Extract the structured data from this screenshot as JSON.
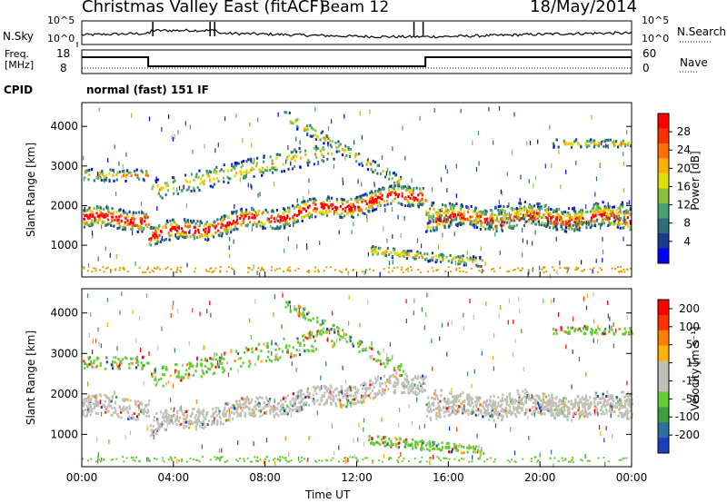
{
  "header": {
    "station": "Christmas Valley East (fitACF)",
    "beam": "Beam 12",
    "date": "18/May/2014"
  },
  "sky_panel": {
    "left_label": "N.Sky",
    "right_label": "N.Search",
    "left_ticks": [
      "10^5",
      "10^0"
    ],
    "right_ticks": [
      "10^5",
      "10^0"
    ]
  },
  "freq_panel": {
    "left_label_line1": "Freq.",
    "left_label_line2": "[MHz]",
    "right_label": "Nave",
    "left_ticks": [
      "18",
      "8"
    ],
    "right_ticks": [
      "60",
      "0"
    ]
  },
  "cpid": {
    "label": "CPID",
    "program": "normal (fast) 151 IF"
  },
  "colors": {
    "power_scale": [
      "#0000ff",
      "#1b3b8f",
      "#2e6e7a",
      "#4aa070",
      "#8cc040",
      "#e0e000",
      "#ffb000",
      "#ff7000",
      "#ff3000",
      "#ff0000"
    ],
    "velocity_scale": [
      "#1d3fbf",
      "#2e6fa0",
      "#3aa040",
      "#66cc33",
      "#c0c0b8",
      "#c0c0b8",
      "#ffb300",
      "#ff8000",
      "#ff3300",
      "#ff0000"
    ]
  },
  "chart_data": [
    {
      "type": "heatmap",
      "name": "power",
      "ylabel": "Slant Range [km]",
      "yticks": [
        "1000",
        "2000",
        "3000",
        "4000"
      ],
      "ylim": [
        200,
        4600
      ],
      "colorbar_label": "Power [dB]",
      "colorbar_ticks": [
        "28",
        "24",
        "20",
        "16",
        "12",
        "8",
        "4"
      ]
    },
    {
      "type": "heatmap",
      "name": "velocity",
      "ylabel": "Slant Range [km]",
      "yticks": [
        "1000",
        "2000",
        "3000",
        "4000"
      ],
      "ylim": [
        200,
        4600
      ],
      "colorbar_label": "Velocity [m s⁻¹]",
      "colorbar_ticks": [
        "200",
        "100",
        "50",
        "15",
        "-15",
        "-50",
        "-100",
        "-200"
      ]
    }
  ],
  "xaxis": {
    "label": "Time UT",
    "ticks": [
      "00:00",
      "04:00",
      "08:00",
      "12:00",
      "16:00",
      "20:00",
      "00:00"
    ]
  }
}
